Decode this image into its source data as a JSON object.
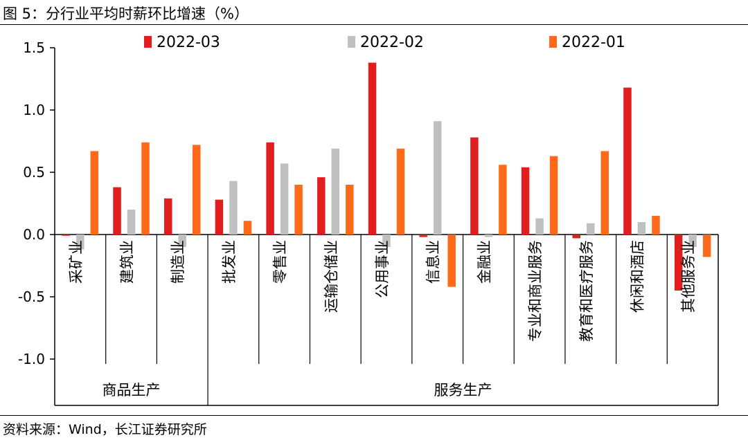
{
  "header": {
    "title": "图 5：分行业平均时薪环比增速（%）"
  },
  "footer": {
    "source": "资料来源：Wind，长江证券研究所"
  },
  "chart_data": {
    "type": "bar",
    "title": "分行业平均时薪环比增速（%）",
    "xlabel": "",
    "ylabel": "",
    "ylim": [
      -1.0,
      1.5
    ],
    "yticks": [
      1.5,
      1.0,
      0.5,
      0.0,
      -0.5,
      -1.0
    ],
    "ytick_labels": [
      "1.5",
      "1.0",
      "0.5",
      "0.0",
      "-0.5",
      "-1.0"
    ],
    "legend_position": "top",
    "categories": [
      "采矿业",
      "建筑业",
      "制造业",
      "批发业",
      "零售业",
      "运输仓储业",
      "公用事业",
      "信息业",
      "金融业",
      "专业和商业服务",
      "教育和医疗服务",
      "休闲和酒店",
      "其他服务业"
    ],
    "groups": [
      {
        "label": "商品生产",
        "start": 0,
        "end": 2
      },
      {
        "label": "服务生产",
        "start": 3,
        "end": 12
      }
    ],
    "series": [
      {
        "name": "2022-03",
        "color": "#e01e1e",
        "values": [
          -0.01,
          0.38,
          0.29,
          0.28,
          0.74,
          0.46,
          1.38,
          -0.02,
          0.78,
          0.54,
          -0.03,
          1.18,
          -0.45
        ]
      },
      {
        "name": "2022-02",
        "color": "#c0c0c0",
        "values": [
          -0.12,
          0.2,
          -0.1,
          0.43,
          0.57,
          0.69,
          -0.1,
          0.91,
          -0.02,
          0.13,
          0.09,
          0.1,
          -0.1
        ]
      },
      {
        "name": "2022-01",
        "color": "#ff6a1a",
        "values": [
          0.67,
          0.74,
          0.72,
          0.11,
          0.4,
          0.4,
          0.69,
          -0.42,
          0.56,
          0.63,
          0.67,
          0.15,
          -0.18
        ]
      }
    ]
  }
}
